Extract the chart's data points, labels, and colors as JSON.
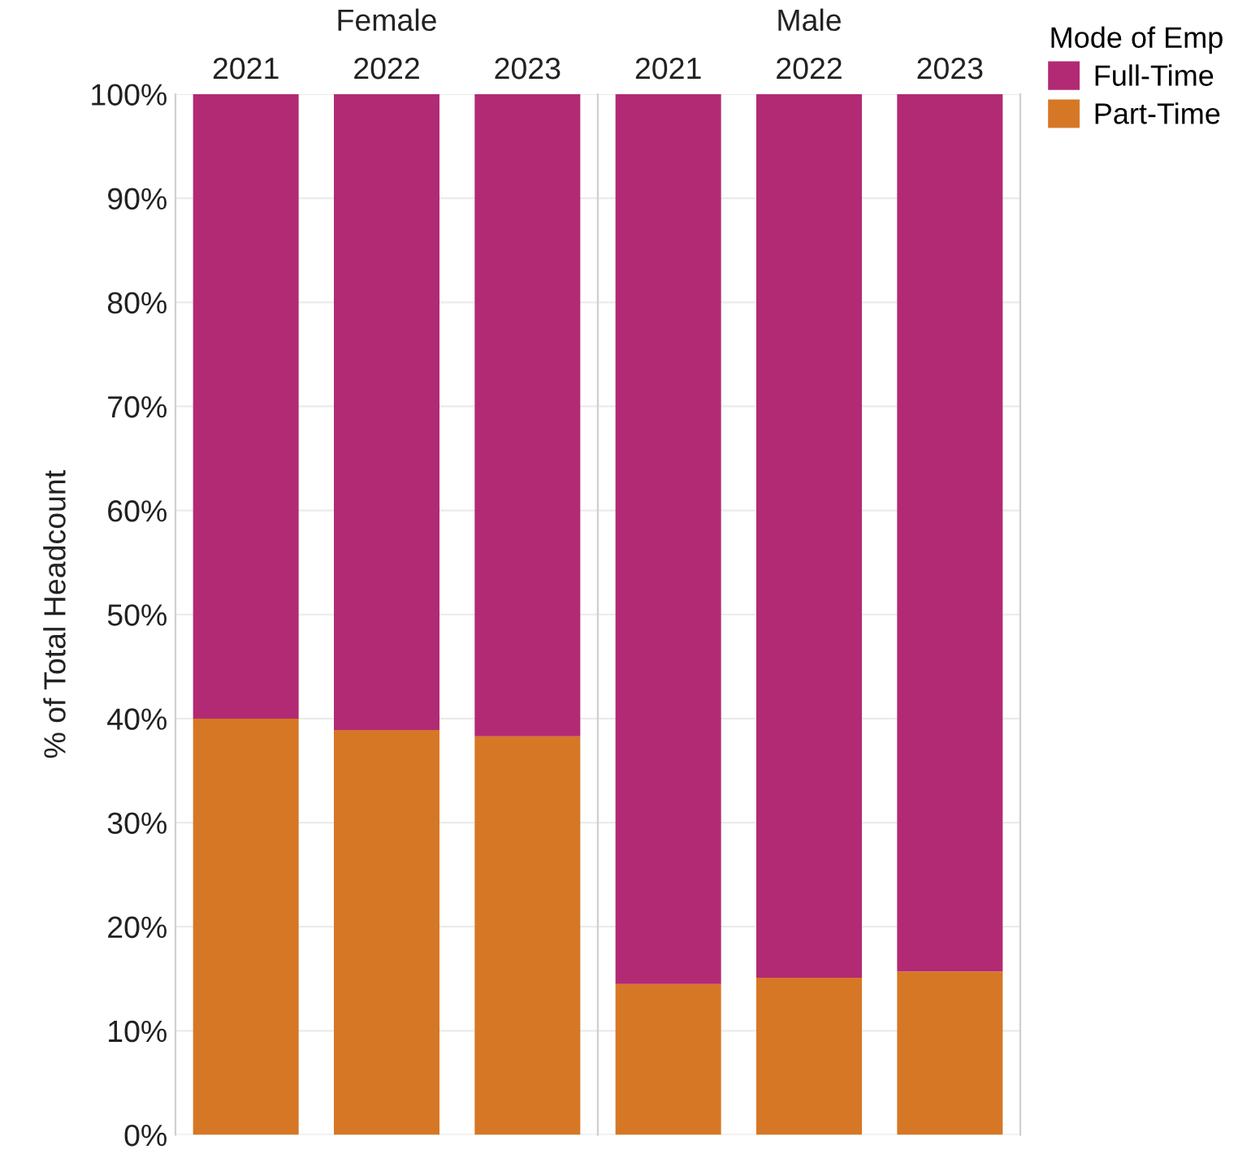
{
  "chart_data": [
    {
      "type": "bar",
      "title": "Female",
      "categories": [
        "2021",
        "2022",
        "2023"
      ],
      "stacked": true,
      "ylabel": "% of Total Headcount",
      "ylim": [
        0,
        100
      ],
      "yticks": [
        {
          "value": 0,
          "label": "0%"
        },
        {
          "value": 10,
          "label": "10%"
        },
        {
          "value": 20,
          "label": "20%"
        },
        {
          "value": 30,
          "label": "30%"
        },
        {
          "value": 40,
          "label": "40%"
        },
        {
          "value": 50,
          "label": "50%"
        },
        {
          "value": 60,
          "label": "60%"
        },
        {
          "value": 70,
          "label": "70%"
        },
        {
          "value": 80,
          "label": "80%"
        },
        {
          "value": 90,
          "label": "90%"
        },
        {
          "value": 100,
          "label": "100%"
        }
      ],
      "grid": "y",
      "series": [
        {
          "color": "#d67726",
          "values": [
            40.0,
            38.9,
            38.3
          ]
        },
        {
          "color": "#b22a74",
          "values": [
            60.0,
            61.1,
            61.7
          ]
        }
      ]
    },
    {
      "type": "bar",
      "title": "Male",
      "categories": [
        "2021",
        "2022",
        "2023"
      ],
      "stacked": true,
      "ylim": [
        0,
        100
      ],
      "yticks": [
        {
          "value": 0,
          "label": null
        },
        {
          "value": 10,
          "label": null
        },
        {
          "value": 20,
          "label": null
        },
        {
          "value": 30,
          "label": null
        },
        {
          "value": 40,
          "label": null
        },
        {
          "value": 50,
          "label": null
        },
        {
          "value": 60,
          "label": null
        },
        {
          "value": 70,
          "label": null
        },
        {
          "value": 80,
          "label": null
        },
        {
          "value": 90,
          "label": null
        },
        {
          "value": 100,
          "label": null
        }
      ],
      "grid": "y",
      "tick_labels": "x",
      "legend": "top right",
      "legend_title": "Mode of Emp",
      "series": [
        {
          "name": "Part-Time",
          "color": "#d67726",
          "values": [
            14.5,
            15.1,
            15.7
          ]
        },
        {
          "name": "Full-Time",
          "color": "#b22a74",
          "values": [
            85.5,
            84.9,
            84.3
          ]
        }
      ]
    }
  ]
}
